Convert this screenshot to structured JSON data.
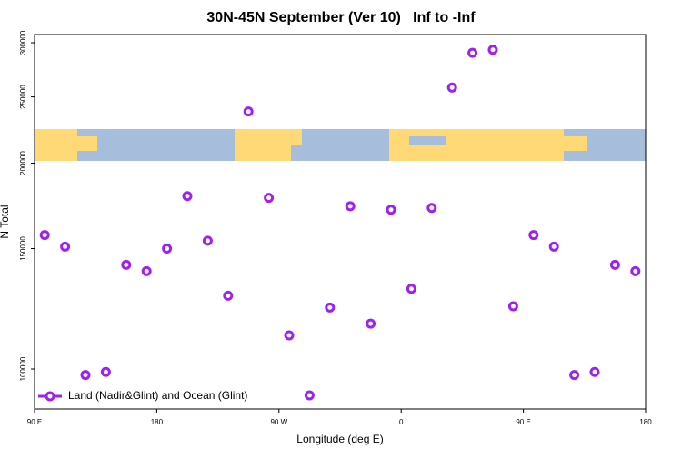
{
  "chart_data": {
    "type": "scatter",
    "title": "30N-45N September (Ver 10)   Inf to -Inf",
    "x_label": "Longitude (deg E)",
    "y_label": "N Total",
    "ylog": true,
    "xlim": [
      90,
      540
    ],
    "ylim": [
      87400,
      308400
    ],
    "xticks": [
      {
        "value": 90,
        "label": "90 E"
      },
      {
        "value": 180,
        "label": "180"
      },
      {
        "value": 270,
        "label": "90 W"
      },
      {
        "value": 360,
        "label": "0"
      },
      {
        "value": 450,
        "label": "90 E"
      },
      {
        "value": 540,
        "label": "180"
      }
    ],
    "yticks": [
      100000,
      150000,
      200000,
      250000,
      300000
    ],
    "legend_position": "lower left",
    "series": [
      {
        "name": "Land (Nadir&Glint) and Ocean (Glint)",
        "color": "#a020f0",
        "x": [
          97.5,
          112.5,
          127.5,
          142.5,
          157.5,
          172.5,
          187.5,
          202.5,
          217.5,
          232.5,
          247.5,
          262.5,
          277.5,
          292.5,
          307.5,
          322.5,
          337.5,
          352.5,
          367.5,
          382.5,
          397.5,
          412.5,
          427.5,
          442.5,
          457.5,
          472.5,
          487.5,
          502.5,
          517.5,
          532.5
        ],
        "values": [
          157000,
          151000,
          98000,
          99000,
          142000,
          139000,
          150000,
          179000,
          154000,
          128000,
          238000,
          178000,
          112000,
          91500,
          123000,
          173000,
          116500,
          171000,
          131000,
          172000,
          258000,
          290000,
          293000,
          123500,
          157000,
          151000,
          98000,
          99000,
          142000,
          139000
        ]
      }
    ]
  }
}
